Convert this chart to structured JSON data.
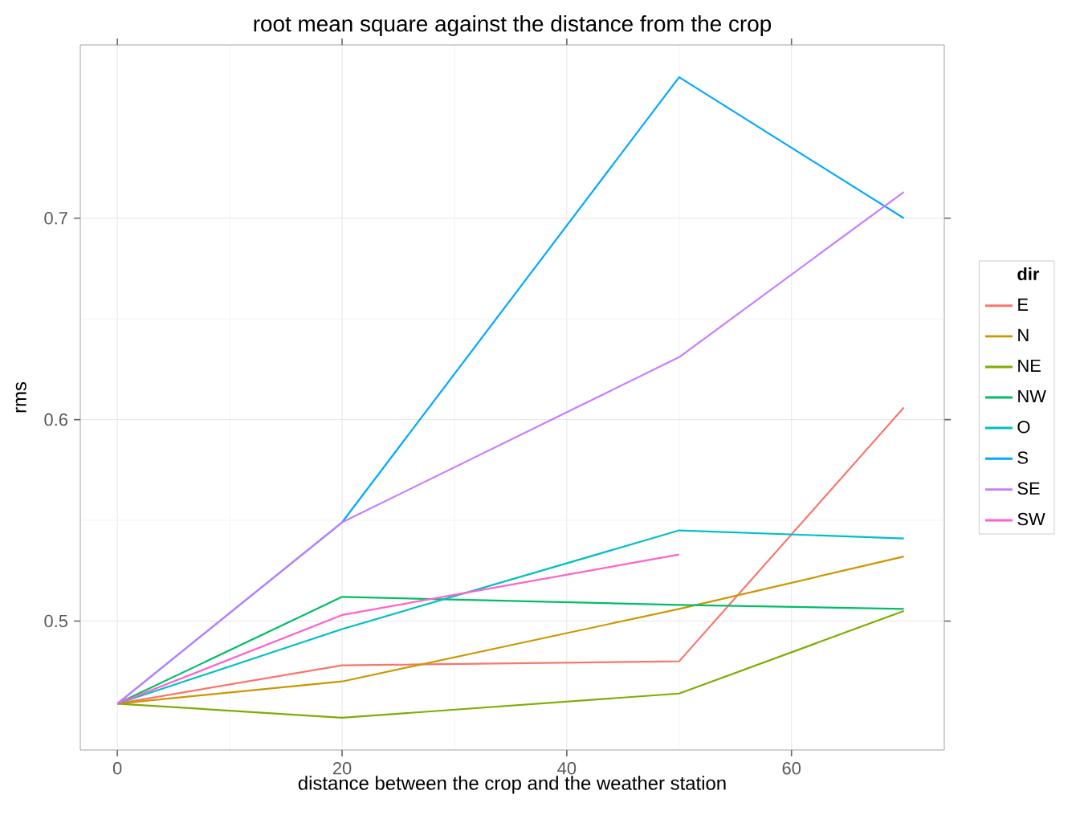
{
  "chart_data": {
    "type": "line",
    "title": "root mean square against the distance from the crop",
    "xlabel": "distance between the crop and the weather station",
    "ylabel": "rms",
    "legend_title": "dir",
    "x": [
      0,
      20,
      50,
      70
    ],
    "series": [
      {
        "name": "E",
        "color": "#f8766d",
        "values": [
          0.459,
          0.478,
          0.48,
          0.606
        ]
      },
      {
        "name": "N",
        "color": "#cd9600",
        "values": [
          0.459,
          0.47,
          0.506,
          0.532
        ]
      },
      {
        "name": "NE",
        "color": "#7cae00",
        "values": [
          0.459,
          0.452,
          0.464,
          0.505
        ]
      },
      {
        "name": "NW",
        "color": "#00be67",
        "values": [
          0.459,
          0.512,
          0.508,
          0.506
        ]
      },
      {
        "name": "O",
        "color": "#00bfc4",
        "values": [
          0.459,
          0.496,
          0.545,
          0.541
        ]
      },
      {
        "name": "S",
        "color": "#00a9ff",
        "values": [
          0.459,
          0.549,
          0.77,
          0.7
        ]
      },
      {
        "name": "SE",
        "color": "#c77cff",
        "values": [
          0.459,
          0.549,
          0.631,
          0.713
        ]
      },
      {
        "name": "SW",
        "color": "#ff61cc",
        "values": [
          0.459,
          0.503,
          0.533,
          null
        ]
      }
    ],
    "xlim": [
      -3.3,
      73.6
    ],
    "ylim": [
      0.436,
      0.786
    ],
    "xticks": [
      0,
      20,
      40,
      60
    ],
    "yticks": [
      0.5,
      0.6,
      0.7
    ],
    "grid": true,
    "legend": "right",
    "marker": "none",
    "line_style": "solid"
  }
}
